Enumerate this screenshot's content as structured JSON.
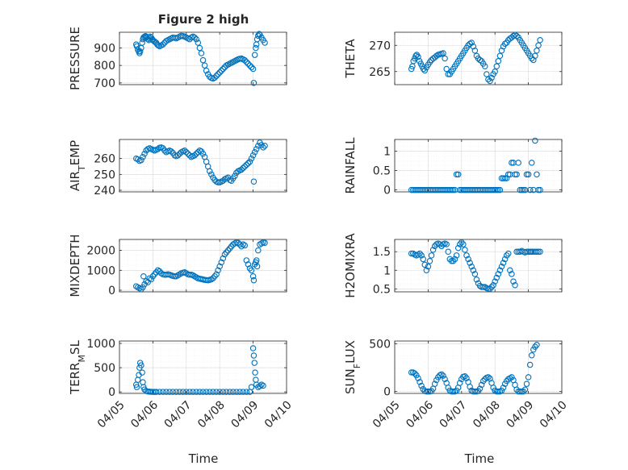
{
  "figure": {
    "title": "Figure 2 high",
    "x_tick_labels": [
      "04/05",
      "04/06",
      "04/07",
      "04/08",
      "04/09",
      "04/10"
    ],
    "xlabel": "Time",
    "marker_color": "#0072bd",
    "background": "#ffffff"
  },
  "chart_data": [
    {
      "type": "scatter",
      "id": "pressure",
      "ylabel": "PRESSURE",
      "ylim": [
        690,
        990
      ],
      "yticks": [
        700,
        800,
        900
      ],
      "grid": true,
      "xlim": [
        5,
        10
      ],
      "x": [
        5.5,
        5.52,
        5.55,
        5.58,
        5.6,
        5.62,
        5.65,
        5.68,
        5.7,
        5.72,
        5.75,
        5.78,
        5.8,
        5.82,
        5.85,
        5.88,
        5.9,
        5.92,
        5.95,
        5.98,
        6.0,
        6.03,
        6.06,
        6.1,
        6.13,
        6.16,
        6.2,
        6.25,
        6.3,
        6.35,
        6.4,
        6.45,
        6.5,
        6.55,
        6.6,
        6.65,
        6.7,
        6.75,
        6.8,
        6.85,
        6.9,
        6.95,
        7.0,
        7.05,
        7.1,
        7.15,
        7.2,
        7.25,
        7.3,
        7.35,
        7.4,
        7.45,
        7.5,
        7.55,
        7.6,
        7.65,
        7.7,
        7.75,
        7.8,
        7.85,
        7.9,
        7.95,
        8.0,
        8.05,
        8.1,
        8.15,
        8.2,
        8.25,
        8.3,
        8.35,
        8.4,
        8.45,
        8.5,
        8.55,
        8.6,
        8.65,
        8.7,
        8.75,
        8.8,
        8.85,
        8.9,
        8.95,
        9.0,
        9.02,
        9.05,
        9.08,
        9.1,
        9.12,
        9.15,
        9.18,
        9.2,
        9.25,
        9.3,
        9.35
      ],
      "y": [
        920,
        910,
        890,
        880,
        870,
        880,
        900,
        930,
        950,
        960,
        965,
        968,
        965,
        960,
        950,
        945,
        955,
        965,
        960,
        950,
        945,
        940,
        935,
        930,
        920,
        915,
        910,
        915,
        920,
        930,
        940,
        945,
        950,
        955,
        960,
        958,
        955,
        960,
        965,
        970,
        968,
        965,
        960,
        955,
        950,
        960,
        965,
        960,
        950,
        930,
        900,
        870,
        830,
        800,
        770,
        750,
        735,
        728,
        725,
        730,
        740,
        750,
        760,
        770,
        780,
        790,
        800,
        805,
        810,
        815,
        820,
        825,
        830,
        835,
        838,
        840,
        835,
        830,
        820,
        810,
        800,
        790,
        780,
        700,
        860,
        900,
        920,
        950,
        970,
        980,
        975,
        960,
        945,
        930
      ]
    },
    {
      "type": "scatter",
      "id": "theta",
      "ylabel": "THETA",
      "ylim": [
        262.5,
        272.5
      ],
      "yticks": [
        265,
        270
      ],
      "grid": true,
      "xlim": [
        5,
        10
      ],
      "x": [
        5.5,
        5.53,
        5.56,
        5.6,
        5.63,
        5.66,
        5.7,
        5.74,
        5.78,
        5.82,
        5.86,
        5.9,
        5.95,
        6.0,
        6.05,
        6.1,
        6.15,
        6.2,
        6.25,
        6.3,
        6.35,
        6.4,
        6.45,
        6.5,
        6.55,
        6.6,
        6.65,
        6.7,
        6.75,
        6.8,
        6.85,
        6.9,
        6.95,
        7.0,
        7.05,
        7.1,
        7.15,
        7.2,
        7.25,
        7.3,
        7.35,
        7.4,
        7.45,
        7.5,
        7.55,
        7.6,
        7.65,
        7.7,
        7.75,
        7.8,
        7.85,
        7.9,
        7.95,
        8.0,
        8.05,
        8.1,
        8.15,
        8.2,
        8.25,
        8.3,
        8.35,
        8.4,
        8.45,
        8.5,
        8.55,
        8.6,
        8.65,
        8.7,
        8.75,
        8.8,
        8.85,
        8.9,
        8.95,
        9.0,
        9.05,
        9.1,
        9.15,
        9.2,
        9.25,
        9.3,
        9.35
      ],
      "y": [
        265.5,
        266,
        267,
        267.5,
        268,
        268.2,
        267.8,
        267,
        266.5,
        266,
        265.5,
        265.2,
        265.8,
        266.3,
        266.8,
        267.2,
        267.5,
        267.7,
        268,
        268.2,
        268.3,
        268.4,
        268.5,
        267.5,
        265.5,
        264.5,
        264.5,
        265,
        265.5,
        266,
        266.5,
        267,
        267.5,
        268,
        268.5,
        269,
        269.5,
        270,
        270.3,
        270.5,
        269.8,
        269,
        268,
        267.5,
        267.2,
        267,
        266.5,
        266,
        264.5,
        263.5,
        263.2,
        263.8,
        264.5,
        265,
        266,
        267,
        268,
        269,
        269.8,
        270.3,
        270.5,
        271,
        271.3,
        271.5,
        271.8,
        272,
        271.8,
        271.5,
        271,
        270.5,
        270,
        269.5,
        269,
        268.5,
        268,
        267.5,
        267.2,
        268,
        269,
        270,
        271
      ]
    },
    {
      "type": "scatter",
      "id": "air_temp",
      "ylabel": "AIR",
      "ylabel_sub": "T",
      "ylabel_tail": "EMP",
      "ylim": [
        239,
        272
      ],
      "yticks": [
        240,
        250,
        260
      ],
      "grid": true,
      "xlim": [
        5,
        10
      ],
      "x": [
        5.5,
        5.55,
        5.6,
        5.65,
        5.7,
        5.75,
        5.8,
        5.85,
        5.9,
        5.95,
        6.0,
        6.05,
        6.1,
        6.15,
        6.2,
        6.25,
        6.3,
        6.35,
        6.4,
        6.45,
        6.5,
        6.55,
        6.6,
        6.65,
        6.7,
        6.75,
        6.8,
        6.85,
        6.9,
        6.95,
        7.0,
        7.05,
        7.1,
        7.15,
        7.2,
        7.25,
        7.3,
        7.35,
        7.4,
        7.45,
        7.5,
        7.55,
        7.6,
        7.65,
        7.7,
        7.75,
        7.8,
        7.85,
        7.9,
        7.95,
        8.0,
        8.05,
        8.1,
        8.15,
        8.2,
        8.25,
        8.3,
        8.35,
        8.4,
        8.45,
        8.5,
        8.55,
        8.6,
        8.65,
        8.7,
        8.75,
        8.8,
        8.85,
        8.9,
        8.95,
        9.0,
        9.02,
        9.05,
        9.1,
        9.15,
        9.2,
        9.25,
        9.3,
        9.35
      ],
      "y": [
        260,
        259.5,
        258.5,
        259,
        261,
        263,
        265,
        266,
        266.5,
        266,
        265.5,
        265,
        265.5,
        266,
        266.8,
        267,
        266.5,
        265,
        264,
        264.5,
        265,
        264.5,
        263.5,
        262,
        261.5,
        262,
        263,
        264,
        264.5,
        265,
        264,
        263,
        262,
        261,
        261.5,
        262,
        263,
        264,
        265,
        264.5,
        263,
        261,
        258,
        255,
        252,
        250,
        248,
        246.5,
        245.5,
        245,
        245,
        245.5,
        246,
        247,
        247.5,
        248,
        246.5,
        246,
        247.5,
        249,
        251,
        252,
        252.5,
        253,
        254,
        255,
        256,
        257,
        258,
        260,
        262,
        245.5,
        264,
        266,
        268,
        270,
        268.5,
        267,
        268
      ]
    },
    {
      "type": "scatter",
      "id": "rainfall",
      "ylabel": "RAINFALL",
      "ylim": [
        -0.05,
        1.3
      ],
      "yticks": [
        0,
        0.5,
        1
      ],
      "grid": true,
      "xlim": [
        5,
        10
      ],
      "x": [
        5.5,
        5.55,
        5.6,
        5.65,
        5.7,
        5.75,
        5.8,
        5.85,
        5.9,
        5.95,
        6.0,
        6.05,
        6.1,
        6.15,
        6.2,
        6.25,
        6.3,
        6.35,
        6.4,
        6.45,
        6.5,
        6.55,
        6.6,
        6.65,
        6.7,
        6.75,
        6.8,
        6.85,
        6.9,
        6.95,
        7.0,
        7.05,
        7.1,
        7.15,
        7.2,
        7.25,
        7.3,
        7.35,
        7.4,
        7.45,
        7.5,
        7.55,
        7.6,
        7.65,
        7.7,
        7.75,
        7.8,
        7.85,
        7.9,
        7.95,
        8.0,
        8.05,
        8.1,
        8.15,
        8.2,
        8.25,
        8.3,
        8.35,
        8.4,
        8.45,
        8.5,
        8.55,
        8.6,
        8.65,
        8.7,
        8.75,
        8.8,
        8.85,
        8.9,
        8.95,
        9.0,
        9.05,
        9.1,
        9.15,
        9.2,
        9.25,
        9.3,
        9.35
      ],
      "y": [
        0,
        0,
        0,
        0,
        0,
        0,
        0,
        0,
        0,
        0,
        0,
        0,
        0,
        0,
        0,
        0,
        0,
        0,
        0,
        0,
        0,
        0,
        0,
        0,
        0,
        0,
        0,
        0.4,
        0.4,
        0,
        0,
        0,
        0,
        0,
        0,
        0,
        0,
        0,
        0,
        0,
        0,
        0,
        0,
        0,
        0,
        0,
        0,
        0,
        0,
        0,
        0,
        0,
        0,
        0,
        0.3,
        0.3,
        0.3,
        0.3,
        0.4,
        0.4,
        0.7,
        0.7,
        0.4,
        0.4,
        0.7,
        0,
        0,
        0,
        0,
        0.4,
        0.4,
        0,
        0.7,
        0,
        1.27,
        0.4,
        0,
        0
      ]
    },
    {
      "type": "scatter",
      "id": "mixdepth",
      "ylabel": "MIXDEPTH",
      "ylim": [
        -80,
        2550
      ],
      "yticks": [
        0,
        1000,
        2000
      ],
      "grid": true,
      "xlim": [
        5,
        10
      ],
      "x": [
        5.5,
        5.55,
        5.6,
        5.65,
        5.7,
        5.72,
        5.75,
        5.8,
        5.85,
        5.9,
        5.95,
        6.0,
        6.05,
        6.1,
        6.15,
        6.2,
        6.25,
        6.3,
        6.35,
        6.4,
        6.45,
        6.5,
        6.55,
        6.6,
        6.65,
        6.7,
        6.75,
        6.8,
        6.85,
        6.9,
        6.95,
        7.0,
        7.05,
        7.1,
        7.15,
        7.2,
        7.25,
        7.3,
        7.35,
        7.4,
        7.45,
        7.5,
        7.55,
        7.6,
        7.65,
        7.7,
        7.75,
        7.8,
        7.85,
        7.9,
        7.95,
        8.0,
        8.05,
        8.1,
        8.15,
        8.2,
        8.25,
        8.3,
        8.35,
        8.4,
        8.45,
        8.5,
        8.55,
        8.6,
        8.65,
        8.7,
        8.75,
        8.8,
        8.85,
        8.9,
        8.95,
        9.0,
        9.02,
        9.05,
        9.08,
        9.1,
        9.12,
        9.15,
        9.2,
        9.25,
        9.3,
        9.35
      ],
      "y": [
        200,
        150,
        100,
        50,
        150,
        700,
        300,
        450,
        400,
        600,
        550,
        700,
        800,
        900,
        1000,
        950,
        850,
        800,
        780,
        780,
        800,
        780,
        750,
        720,
        700,
        700,
        750,
        800,
        850,
        880,
        900,
        850,
        800,
        780,
        780,
        750,
        700,
        650,
        600,
        580,
        560,
        540,
        520,
        510,
        500,
        520,
        550,
        600,
        700,
        800,
        1000,
        1200,
        1400,
        1600,
        1800,
        1900,
        2000,
        2100,
        2200,
        2300,
        2350,
        2400,
        2380,
        2300,
        2200,
        2300,
        2250,
        1500,
        1300,
        1100,
        1000,
        700,
        500,
        1300,
        1400,
        1500,
        1200,
        2000,
        2300,
        2350,
        2400,
        2380
      ]
    },
    {
      "type": "scatter",
      "id": "h2omixra",
      "ylabel": "H2OMIXRA",
      "ylim": [
        0.42,
        1.83
      ],
      "yticks": [
        0.5,
        1,
        1.5
      ],
      "grid": true,
      "xlim": [
        5,
        10
      ],
      "x": [
        5.5,
        5.55,
        5.6,
        5.65,
        5.7,
        5.75,
        5.8,
        5.85,
        5.9,
        5.95,
        6.0,
        6.05,
        6.1,
        6.15,
        6.2,
        6.25,
        6.3,
        6.35,
        6.4,
        6.45,
        6.5,
        6.55,
        6.6,
        6.65,
        6.7,
        6.75,
        6.8,
        6.85,
        6.9,
        6.95,
        7.0,
        7.05,
        7.1,
        7.15,
        7.2,
        7.25,
        7.3,
        7.35,
        7.4,
        7.45,
        7.5,
        7.55,
        7.6,
        7.65,
        7.7,
        7.75,
        7.8,
        7.85,
        7.9,
        7.95,
        8.0,
        8.05,
        8.1,
        8.15,
        8.2,
        8.25,
        8.3,
        8.35,
        8.4,
        8.45,
        8.5,
        8.55,
        8.6,
        8.65,
        8.7,
        8.75,
        8.8,
        8.85,
        8.9,
        8.95,
        9.0,
        9.05,
        9.08,
        9.1,
        9.15,
        9.2,
        9.25,
        9.3,
        9.35
      ],
      "y": [
        1.45,
        1.45,
        1.42,
        1.4,
        1.42,
        1.45,
        1.4,
        1.3,
        1.15,
        1.0,
        1.1,
        1.25,
        1.4,
        1.55,
        1.65,
        1.7,
        1.72,
        1.7,
        1.65,
        1.7,
        1.72,
        1.7,
        1.5,
        1.3,
        1.25,
        1.25,
        1.3,
        1.4,
        1.6,
        1.7,
        1.75,
        1.7,
        1.55,
        1.4,
        1.3,
        1.2,
        1.1,
        1.0,
        0.9,
        0.75,
        0.65,
        0.58,
        0.55,
        0.55,
        0.55,
        0.52,
        0.5,
        0.5,
        0.55,
        0.6,
        0.7,
        0.8,
        0.9,
        1.0,
        1.1,
        1.2,
        1.3,
        1.4,
        1.45,
        1.0,
        0.9,
        0.7,
        0.6,
        1.5,
        1.5,
        1.5,
        1.52,
        1.5,
        1.48,
        1.5,
        1.5,
        1.5,
        1.5,
        1.5,
        1.5,
        1.5,
        1.5,
        1.5,
        1.5
      ]
    },
    {
      "type": "scatter",
      "id": "terr_msl",
      "ylabel": "TERR",
      "ylabel_sub": "M",
      "ylabel_tail": "SL",
      "ylim": [
        -30,
        1050
      ],
      "yticks": [
        0,
        500,
        1000
      ],
      "grid": true,
      "xlim": [
        5,
        10
      ],
      "x": [
        5.5,
        5.52,
        5.55,
        5.58,
        5.6,
        5.62,
        5.65,
        5.68,
        5.7,
        5.72,
        5.75,
        5.8,
        5.85,
        5.9,
        5.95,
        6.0,
        6.05,
        6.1,
        6.2,
        6.3,
        6.4,
        6.5,
        6.6,
        6.7,
        6.8,
        6.9,
        7.0,
        7.1,
        7.2,
        7.3,
        7.4,
        7.5,
        7.6,
        7.7,
        7.8,
        7.9,
        8.0,
        8.1,
        8.2,
        8.3,
        8.4,
        8.5,
        8.6,
        8.7,
        8.8,
        8.9,
        8.95,
        9.0,
        9.02,
        9.04,
        9.06,
        9.08,
        9.1,
        9.15,
        9.2,
        9.25,
        9.3
      ],
      "y": [
        150,
        100,
        250,
        350,
        500,
        600,
        550,
        400,
        200,
        100,
        50,
        20,
        10,
        5,
        3,
        2,
        2,
        2,
        2,
        2,
        2,
        2,
        2,
        2,
        2,
        2,
        2,
        2,
        2,
        2,
        2,
        2,
        2,
        2,
        2,
        2,
        2,
        2,
        2,
        2,
        2,
        2,
        2,
        2,
        2,
        2,
        100,
        900,
        750,
        600,
        400,
        250,
        150,
        100,
        120,
        150,
        130
      ]
    },
    {
      "type": "scatter",
      "id": "sun_flux",
      "ylabel": "SUN",
      "ylabel_sub": "F",
      "ylabel_tail": "LUX",
      "ylim": [
        -20,
        530
      ],
      "yticks": [
        0,
        500
      ],
      "grid": true,
      "xlim": [
        5,
        10
      ],
      "x": [
        5.5,
        5.55,
        5.6,
        5.65,
        5.7,
        5.75,
        5.8,
        5.85,
        5.9,
        5.95,
        6.0,
        6.05,
        6.1,
        6.15,
        6.2,
        6.25,
        6.3,
        6.35,
        6.4,
        6.45,
        6.5,
        6.55,
        6.6,
        6.65,
        6.7,
        6.75,
        6.8,
        6.85,
        6.9,
        6.95,
        7.0,
        7.05,
        7.1,
        7.15,
        7.2,
        7.25,
        7.3,
        7.35,
        7.4,
        7.45,
        7.5,
        7.55,
        7.6,
        7.65,
        7.7,
        7.75,
        7.8,
        7.85,
        7.9,
        7.95,
        8.0,
        8.05,
        8.1,
        8.15,
        8.2,
        8.25,
        8.3,
        8.35,
        8.4,
        8.45,
        8.5,
        8.55,
        8.6,
        8.65,
        8.7,
        8.75,
        8.8,
        8.85,
        8.9,
        8.95,
        9.0,
        9.05,
        9.1,
        9.15,
        9.2,
        9.25
      ],
      "y": [
        200,
        200,
        190,
        170,
        140,
        100,
        60,
        25,
        5,
        0,
        0,
        0,
        5,
        30,
        80,
        120,
        150,
        170,
        180,
        165,
        130,
        90,
        40,
        10,
        0,
        0,
        0,
        10,
        40,
        90,
        130,
        155,
        160,
        140,
        100,
        50,
        10,
        0,
        0,
        0,
        5,
        30,
        70,
        110,
        130,
        145,
        150,
        135,
        90,
        40,
        10,
        0,
        0,
        0,
        10,
        40,
        80,
        110,
        130,
        140,
        150,
        120,
        70,
        20,
        0,
        0,
        0,
        0,
        20,
        80,
        150,
        280,
        380,
        440,
        470,
        490
      ]
    }
  ]
}
